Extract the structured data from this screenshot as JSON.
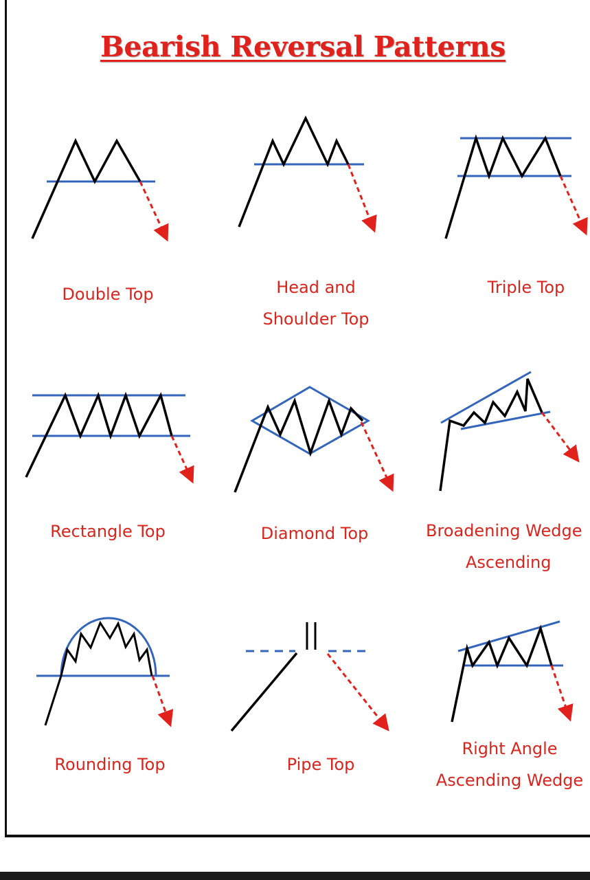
{
  "title": "Bearish Reversal Patterns",
  "colors": {
    "title": "#e0211c",
    "label": "#d8261f",
    "pattern_line": "#000000",
    "trend_line": "#3366bb",
    "breakdown_arrow": "#e0211c"
  },
  "patterns": [
    {
      "id": "double-top",
      "lines": [
        "Double Top"
      ]
    },
    {
      "id": "head-and-shoulder-top",
      "lines": [
        "Head and",
        "Shoulder Top"
      ]
    },
    {
      "id": "triple-top",
      "lines": [
        "Triple Top"
      ]
    },
    {
      "id": "rectangle-top",
      "lines": [
        "Rectangle Top"
      ]
    },
    {
      "id": "diamond-top",
      "lines": [
        "Diamond Top"
      ]
    },
    {
      "id": "broadening-wedge-ascending",
      "lines": [
        "Broadening Wedge",
        "Ascending"
      ]
    },
    {
      "id": "rounding-top",
      "lines": [
        "Rounding Top"
      ]
    },
    {
      "id": "pipe-top",
      "lines": [
        "Pipe Top"
      ]
    },
    {
      "id": "right-angle-ascending-wedge",
      "lines": [
        "Right Angle",
        "Ascending Wedge"
      ]
    }
  ]
}
